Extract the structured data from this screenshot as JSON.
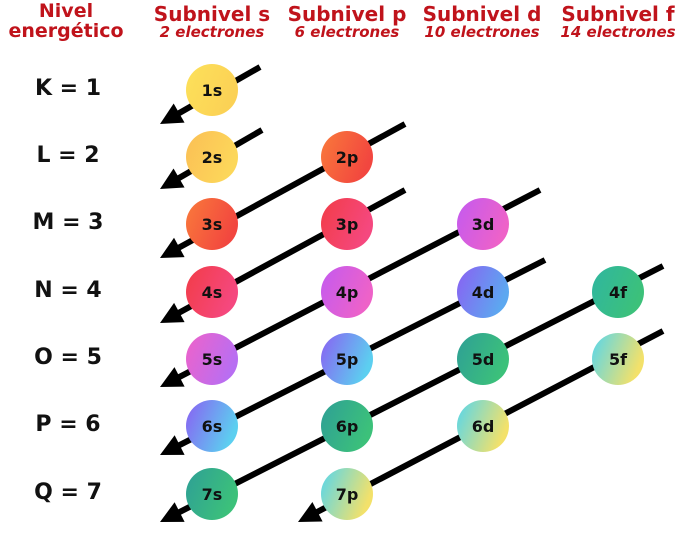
{
  "header": {
    "level_title": "Nivel energético",
    "columns": [
      {
        "title": "Subnivel s",
        "subtitle": "2 electrones"
      },
      {
        "title": "Subnivel p",
        "subtitle": "6 electrones"
      },
      {
        "title": "Subnivel d",
        "subtitle": "10 electrones"
      },
      {
        "title": "Subnivel f",
        "subtitle": "14 electrones"
      }
    ]
  },
  "levels": [
    "K = 1",
    "L = 2",
    "M = 3",
    "N = 4",
    "O = 5",
    "P = 6",
    "Q = 7"
  ],
  "orbitals": [
    {
      "label": "1s",
      "colors": [
        "#fde15a",
        "#fbd155"
      ]
    },
    {
      "label": "2s",
      "colors": [
        "#fbbf55",
        "#fcd75a"
      ]
    },
    {
      "label": "2p",
      "colors": [
        "#f97a3b",
        "#f2463f"
      ]
    },
    {
      "label": "3s",
      "colors": [
        "#f97a3b",
        "#f2463f"
      ]
    },
    {
      "label": "3p",
      "colors": [
        "#f23c47",
        "#f5487f"
      ]
    },
    {
      "label": "3d",
      "colors": [
        "#c35af0",
        "#ee62c8"
      ]
    },
    {
      "label": "4s",
      "colors": [
        "#f23c47",
        "#f5487f"
      ]
    },
    {
      "label": "4p",
      "colors": [
        "#c35af0",
        "#ee62c8"
      ]
    },
    {
      "label": "4d",
      "colors": [
        "#8a60f2",
        "#5ca8f0"
      ]
    },
    {
      "label": "4f",
      "colors": [
        "#2fb6a0",
        "#3cc17a"
      ]
    },
    {
      "label": "5s",
      "colors": [
        "#ef62c9",
        "#b86ef2"
      ]
    },
    {
      "label": "5p",
      "colors": [
        "#8a60f2",
        "#5ccff0"
      ]
    },
    {
      "label": "5d",
      "colors": [
        "#2e9f96",
        "#3cc17a"
      ]
    },
    {
      "label": "5f",
      "colors": [
        "#55d6ee",
        "#f3e16a"
      ]
    },
    {
      "label": "6s",
      "colors": [
        "#8a60f2",
        "#5ccff0"
      ]
    },
    {
      "label": "6p",
      "colors": [
        "#2e9f96",
        "#3cc17a"
      ]
    },
    {
      "label": "6d",
      "colors": [
        "#55d6ee",
        "#f3e16a"
      ]
    },
    {
      "label": "7s",
      "colors": [
        "#2e9f96",
        "#3cc17a"
      ]
    },
    {
      "label": "7p",
      "colors": [
        "#55d6ee",
        "#f3e16a"
      ]
    }
  ],
  "colors": {
    "header": "#c0131b",
    "arrow": "#000000",
    "level_text": "#111111"
  }
}
